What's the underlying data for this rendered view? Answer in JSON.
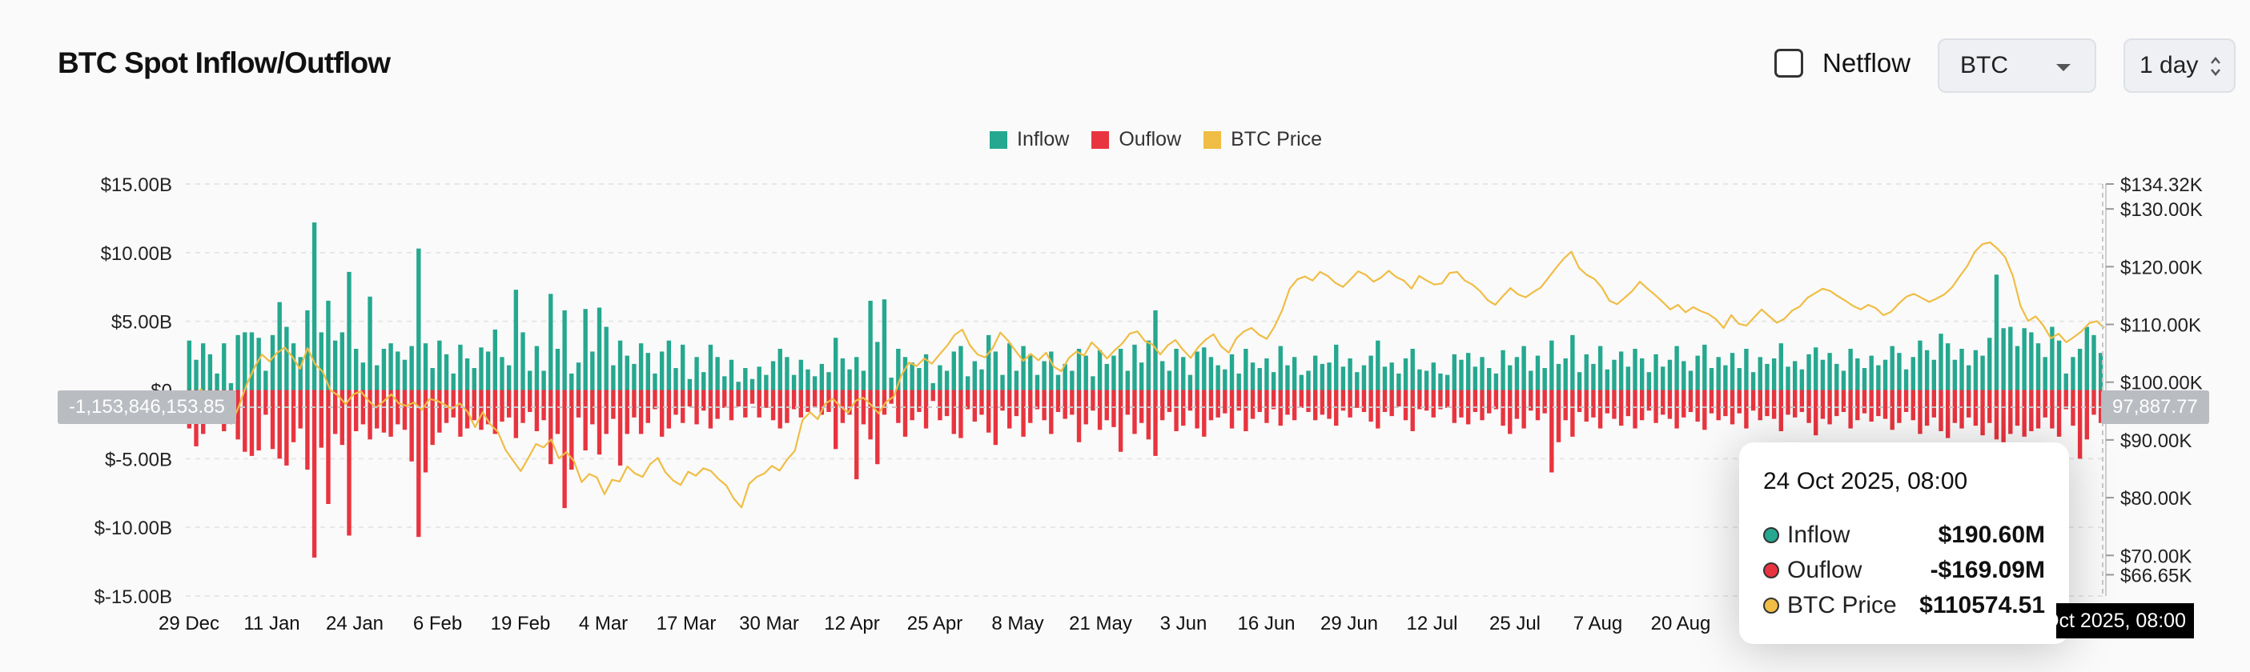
{
  "header": {
    "title": "BTC Spot Inflow/Outflow",
    "netflow_label": "Netflow",
    "coin_select": "BTC",
    "interval_select": "1 day"
  },
  "colors": {
    "inflow": "#25a88f",
    "outflow": "#e8343f",
    "price": "#f0bd45"
  },
  "crosshair": {
    "left_value": "-1,153,846,153.85",
    "right_value": "97,887.77",
    "x_value": "24 Oct 2025, 08:00"
  },
  "tooltip": {
    "date": "24 Oct 2025, 08:00",
    "rows": [
      {
        "label": "Inflow",
        "value": "$190.60M",
        "color": "#25a88f"
      },
      {
        "label": "Ouflow",
        "value": "-$169.09M",
        "color": "#e8343f"
      },
      {
        "label": "BTC Price",
        "value": "$110574.51",
        "color": "#f0bd45"
      }
    ]
  },
  "chart_data": {
    "type": "bar",
    "title": "BTC Spot Inflow/Outflow",
    "legend": [
      "Inflow",
      "Ouflow",
      "BTC Price"
    ],
    "legend_position": "top-center",
    "grid": true,
    "x_tick_labels": [
      "29 Dec",
      "11 Jan",
      "24 Jan",
      "6 Feb",
      "19 Feb",
      "4 Mar",
      "17 Mar",
      "30 Mar",
      "12 Apr",
      "25 Apr",
      "8 May",
      "21 May",
      "3 Jun",
      "16 Jun",
      "29 Jun",
      "12 Jul",
      "25 Jul",
      "7 Aug",
      "20 Aug"
    ],
    "y_left": {
      "ylim": [
        -15,
        15
      ],
      "unit": "B",
      "tick_labels": [
        "$15.00B",
        "$10.00B",
        "$5.00B",
        "$0",
        "$-5.00B",
        "$-10.00B",
        "$-15.00B"
      ],
      "ticks": [
        15,
        10,
        5,
        0,
        -5,
        -10,
        -15
      ]
    },
    "y_right": {
      "ylim": [
        62.97,
        134.32
      ],
      "unit": "K",
      "tick_labels": [
        "$134.32K",
        "$130.00K",
        "$120.00K",
        "$110.00K",
        "$100.00K",
        "$90.00K",
        "$80.00K",
        "$70.00K",
        "$66.65K"
      ],
      "ticks": [
        134.32,
        130,
        120,
        110,
        100,
        90,
        80,
        70,
        66.65
      ]
    },
    "inflow_B": [
      3.6,
      2.2,
      3.4,
      2.6,
      1.2,
      3.4,
      0.5,
      4.0,
      4.2,
      4.2,
      3.8,
      1.4,
      4.0,
      6.4,
      4.6,
      3.4,
      2.4,
      5.8,
      12.2,
      4.2,
      6.5,
      3.6,
      4.2,
      8.6,
      3.0,
      2.0,
      6.8,
      1.8,
      3.0,
      3.4,
      2.8,
      2.2,
      3.2,
      10.3,
      3.4,
      1.6,
      3.6,
      2.6,
      1.2,
      3.3,
      2.3,
      1.6,
      3.1,
      2.8,
      4.4,
      2.4,
      1.8,
      7.3,
      4.2,
      1.4,
      3.2,
      1.4,
      7.0,
      3.0,
      5.8,
      1.2,
      2.0,
      5.9,
      2.8,
      6.0,
      4.6,
      1.8,
      3.6,
      2.5,
      1.9,
      3.4,
      2.7,
      1.2,
      2.8,
      3.6,
      1.6,
      3.3,
      0.8,
      2.4,
      1.3,
      3.3,
      2.4,
      1.0,
      2.2,
      0.6,
      1.6,
      0.8,
      1.7,
      1.1,
      2.1,
      3.0,
      2.4,
      1.1,
      2.2,
      1.5,
      1.0,
      1.9,
      1.3,
      3.8,
      2.3,
      1.5,
      2.4,
      1.4,
      6.5,
      3.5,
      6.6,
      0.9,
      3.0,
      2.4,
      2.0,
      1.6,
      2.6,
      0.5,
      1.8,
      1.4,
      2.8,
      3.2,
      1.0,
      2.1,
      1.5,
      4.0,
      2.8,
      1.1,
      3.4,
      1.4,
      3.2,
      2.6,
      1.1,
      2.1,
      2.8,
      1.1,
      1.9,
      1.4,
      3.0,
      2.5,
      1.0,
      2.9,
      1.9,
      2.5,
      3.0,
      1.4,
      3.3,
      2.0,
      3.6,
      5.8,
      2.1,
      1.4,
      3.0,
      2.4,
      1.1,
      2.8,
      3.1,
      2.4,
      1.8,
      1.5,
      2.6,
      1.2,
      3.0,
      2.0,
      1.6,
      2.3,
      1.3,
      3.2,
      1.8,
      2.4,
      1.1,
      1.4,
      2.5,
      1.9,
      2.0,
      3.3,
      1.7,
      2.3,
      1.3,
      1.8,
      2.5,
      3.6,
      1.7,
      2.0,
      1.2,
      2.3,
      3.0,
      1.5,
      1.4,
      2.0,
      1.2,
      1.1,
      2.6,
      2.2,
      2.7,
      1.7,
      2.4,
      1.6,
      1.2,
      2.9,
      1.8,
      2.4,
      3.2,
      1.4,
      2.5,
      1.6,
      3.6,
      1.9,
      2.3,
      4.0,
      1.3,
      2.6,
      1.9,
      3.2,
      1.5,
      2.2,
      2.8,
      1.7,
      3.0,
      2.3,
      1.3,
      2.6,
      1.7,
      2.2,
      3.2,
      2.1,
      1.4,
      2.5,
      3.3,
      1.6,
      2.4,
      1.8,
      2.7,
      1.6,
      3.0,
      1.3,
      2.4,
      1.9,
      2.3,
      3.4,
      1.7,
      2.1,
      1.5,
      2.6,
      3.1,
      2.2,
      2.7,
      1.9,
      1.4,
      3.0,
      2.3,
      1.6,
      2.5,
      1.8,
      2.2,
      3.2,
      2.7,
      1.5,
      2.4,
      3.6,
      2.9,
      2.2,
      4.1,
      3.4,
      2.2,
      3.0,
      1.8,
      2.9,
      2.5,
      3.8,
      8.4,
      4.5,
      4.6,
      3.2,
      4.5,
      4.2,
      3.4,
      2.4,
      4.6,
      3.6,
      1.2,
      2.4,
      3.0,
      4.6,
      4.0,
      2.7
    ],
    "outflow_B": [
      -2.8,
      -4.1,
      -3.2,
      -2.4,
      -1.5,
      -3.0,
      -1.2,
      -3.6,
      -4.5,
      -4.8,
      -4.4,
      -1.8,
      -4.3,
      -5.0,
      -5.5,
      -3.8,
      -2.8,
      -5.8,
      -12.2,
      -4.2,
      -8.3,
      -3.2,
      -4.0,
      -10.6,
      -3.0,
      -2.5,
      -3.6,
      -2.8,
      -3.1,
      -3.4,
      -2.5,
      -2.9,
      -5.2,
      -10.7,
      -6.0,
      -4.0,
      -3.1,
      -2.4,
      -2.0,
      -3.4,
      -2.8,
      -2.2,
      -2.9,
      -2.5,
      -3.2,
      -2.3,
      -2.0,
      -3.5,
      -2.4,
      -1.6,
      -3.0,
      -2.2,
      -5.4,
      -3.2,
      -8.6,
      -5.8,
      -2.0,
      -4.4,
      -2.5,
      -4.7,
      -3.2,
      -2.1,
      -5.5,
      -3.2,
      -2.0,
      -3.2,
      -2.4,
      -1.4,
      -3.4,
      -2.8,
      -1.8,
      -2.4,
      -1.2,
      -2.5,
      -1.5,
      -2.8,
      -2.1,
      -1.3,
      -2.2,
      -1.2,
      -2.0,
      -1.0,
      -2.0,
      -1.3,
      -2.2,
      -2.8,
      -2.4,
      -1.4,
      -2.0,
      -1.6,
      -1.2,
      -1.8,
      -1.6,
      -4.3,
      -2.4,
      -1.8,
      -6.5,
      -2.5,
      -3.6,
      -5.4,
      -1.8,
      -1.0,
      -2.4,
      -3.4,
      -2.2,
      -1.6,
      -2.8,
      -0.8,
      -2.2,
      -1.9,
      -3.2,
      -3.5,
      -1.4,
      -2.3,
      -1.8,
      -3.1,
      -4.0,
      -1.5,
      -2.8,
      -1.9,
      -3.4,
      -2.4,
      -1.4,
      -2.2,
      -3.2,
      -1.6,
      -2.1,
      -1.8,
      -3.8,
      -2.5,
      -1.5,
      -2.9,
      -2.2,
      -2.7,
      -4.5,
      -1.8,
      -3.2,
      -2.4,
      -3.6,
      -4.8,
      -2.2,
      -1.6,
      -3.0,
      -2.6,
      -1.5,
      -2.8,
      -3.4,
      -2.2,
      -2.0,
      -1.7,
      -2.8,
      -1.5,
      -3.0,
      -2.1,
      -1.6,
      -2.4,
      -1.4,
      -2.6,
      -1.8,
      -2.2,
      -1.3,
      -1.6,
      -2.2,
      -1.8,
      -2.1,
      -2.6,
      -1.5,
      -2.0,
      -1.3,
      -1.6,
      -2.3,
      -2.8,
      -1.6,
      -1.9,
      -1.2,
      -2.2,
      -3.0,
      -1.4,
      -1.5,
      -2.0,
      -1.4,
      -1.3,
      -2.4,
      -2.0,
      -2.5,
      -1.6,
      -2.2,
      -1.7,
      -1.4,
      -2.6,
      -3.2,
      -2.1,
      -2.8,
      -1.5,
      -2.2,
      -1.7,
      -6.0,
      -3.8,
      -2.2,
      -3.4,
      -1.6,
      -2.3,
      -2.0,
      -2.8,
      -1.7,
      -2.1,
      -2.6,
      -1.9,
      -2.8,
      -2.2,
      -1.5,
      -2.4,
      -1.8,
      -2.1,
      -2.8,
      -2.0,
      -1.6,
      -2.3,
      -2.9,
      -1.7,
      -2.2,
      -1.9,
      -2.5,
      -1.7,
      -2.8,
      -1.5,
      -2.2,
      -1.9,
      -2.1,
      -3.0,
      -1.8,
      -2.0,
      -1.6,
      -2.4,
      -3.3,
      -2.1,
      -2.5,
      -1.9,
      -1.6,
      -2.8,
      -2.2,
      -1.7,
      -2.3,
      -1.9,
      -2.1,
      -2.9,
      -2.4,
      -1.6,
      -2.2,
      -3.2,
      -2.6,
      -2.0,
      -3.0,
      -3.5,
      -2.4,
      -2.8,
      -2.0,
      -2.6,
      -3.3,
      -2.4,
      -3.6,
      -3.8,
      -3.2,
      -2.6,
      -3.4,
      -3.0,
      -2.8,
      -2.0,
      -2.8,
      -3.4,
      -1.4,
      -2.6,
      -5.0,
      -3.6,
      -1.8,
      -2.4
    ],
    "price_K": [
      94.5,
      97.2,
      98.8,
      96.4,
      94.1,
      93.6,
      92.8,
      95.9,
      99.6,
      102.5,
      104.8,
      103.6,
      105.1,
      106.0,
      104.4,
      102.3,
      105.9,
      103.1,
      101.8,
      98.6,
      97.7,
      96.2,
      97.9,
      98.4,
      96.8,
      95.6,
      96.7,
      97.9,
      96.3,
      95.9,
      96.5,
      95.2,
      97.1,
      96.8,
      96.1,
      95.4,
      96.3,
      94.9,
      92.2,
      94.8,
      92.7,
      91.4,
      88.3,
      86.4,
      84.6,
      86.9,
      89.3,
      88.7,
      90.1,
      86.8,
      87.9,
      86.3,
      82.7,
      84.1,
      83.5,
      80.6,
      83.1,
      82.8,
      85.4,
      84.2,
      83.6,
      85.8,
      86.9,
      84.4,
      83.0,
      82.2,
      84.5,
      83.8,
      85.1,
      84.6,
      83.2,
      82.1,
      79.8,
      78.3,
      82.4,
      83.6,
      84.2,
      85.5,
      84.7,
      86.6,
      88.1,
      93.4,
      94.8,
      93.6,
      96.3,
      97.1,
      95.8,
      94.7,
      96.8,
      97.3,
      96.1,
      94.6,
      96.6,
      97.5,
      101.2,
      103.4,
      102.8,
      104.1,
      103.2,
      104.8,
      106.3,
      108.2,
      109.1,
      106.4,
      104.8,
      104.3,
      105.9,
      108.6,
      107.2,
      105.4,
      103.7,
      104.9,
      103.8,
      105.1,
      102.7,
      101.9,
      104.2,
      105.3,
      104.6,
      106.9,
      105.6,
      104.1,
      105.5,
      106.7,
      108.4,
      108.8,
      107.1,
      106.5,
      104.8,
      106.4,
      107.3,
      105.6,
      104.2,
      106.1,
      107.4,
      108.3,
      106.2,
      105.1,
      107.6,
      108.8,
      109.4,
      108.2,
      107.5,
      109.6,
      112.4,
      116.2,
      117.8,
      118.3,
      117.6,
      119.1,
      118.4,
      117.2,
      116.5,
      117.8,
      119.2,
      118.6,
      117.4,
      118.1,
      119.3,
      118.2,
      117.6,
      116.2,
      118.4,
      117.6,
      116.9,
      117.1,
      118.9,
      119.1,
      117.6,
      116.9,
      115.8,
      114.2,
      113.4,
      114.9,
      116.3,
      115.2,
      114.7,
      115.6,
      116.4,
      118.1,
      119.8,
      121.4,
      122.6,
      119.8,
      118.6,
      117.9,
      116.4,
      114.1,
      113.5,
      114.6,
      115.8,
      117.4,
      116.2,
      115.1,
      113.9,
      112.6,
      113.4,
      112.1,
      113.0,
      112.3,
      111.8,
      110.9,
      109.4,
      111.6,
      110.1,
      109.8,
      111.2,
      112.6,
      111.4,
      110.3,
      111.0,
      112.4,
      113.1,
      114.6,
      115.4,
      116.2,
      115.8,
      114.9,
      114.1,
      113.2,
      112.6,
      113.4,
      112.8,
      111.6,
      112.2,
      113.6,
      114.8,
      115.3,
      114.6,
      113.9,
      114.5,
      115.2,
      116.4,
      118.3,
      120.1,
      122.6,
      123.9,
      124.2,
      123.1,
      121.6,
      118.4,
      113.2,
      110.6,
      111.4,
      109.8,
      107.6,
      108.4,
      106.9,
      107.8,
      108.8,
      110.2,
      110.57,
      109.4
    ]
  }
}
